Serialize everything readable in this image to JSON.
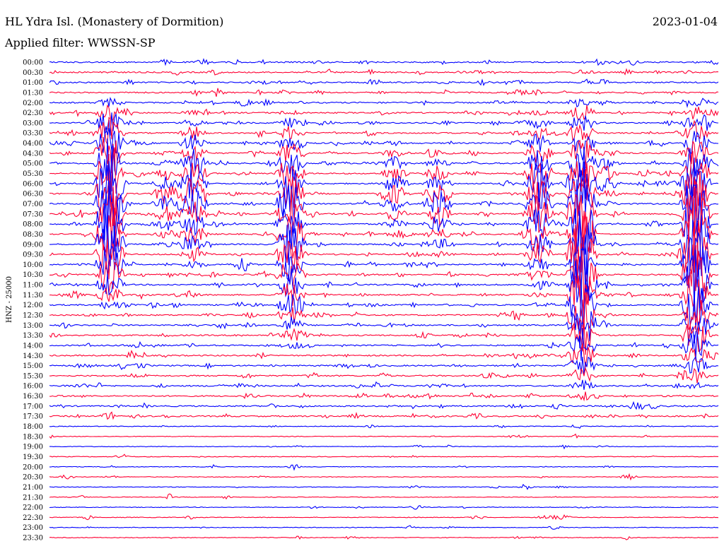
{
  "header": {
    "station": "HL Ydra Isl. (Monastery of Dormition)",
    "date": "2023-01-04",
    "filter": "Applied filter: WWSSN-SP"
  },
  "chart_data": {
    "type": "line",
    "title": "HL Ydra Isl. (Monastery of Dormition)",
    "subtitle": "Applied filter: WWSSN-SP",
    "date": "2023-01-04",
    "ylabel": "HNZ - 25000",
    "xlabel": "",
    "grid": false,
    "line_colors": [
      "#0000ff",
      "#ff0033"
    ],
    "rows": [
      "00:00",
      "00:30",
      "01:00",
      "01:30",
      "02:00",
      "02:30",
      "03:00",
      "03:30",
      "04:00",
      "04:30",
      "05:00",
      "05:30",
      "06:00",
      "06:30",
      "07:00",
      "07:30",
      "08:00",
      "08:30",
      "09:00",
      "09:30",
      "10:00",
      "10:30",
      "11:00",
      "11:30",
      "12:00",
      "12:30",
      "13:00",
      "13:30",
      "14:00",
      "14:30",
      "15:00",
      "15:30",
      "16:00",
      "16:30",
      "17:00",
      "17:30",
      "18:00",
      "18:30",
      "19:00",
      "19:30",
      "20:00",
      "20:30",
      "21:00",
      "21:30",
      "22:00",
      "22:30",
      "23:00",
      "23:30"
    ],
    "events": [
      {
        "x": 0.09,
        "rows": [
          4,
          24
        ],
        "peak": 5.0
      },
      {
        "x": 0.215,
        "rows": [
          5,
          21
        ],
        "peak": 2.0
      },
      {
        "x": 0.175,
        "rows": [
          9,
          18
        ],
        "peak": 1.2
      },
      {
        "x": 0.36,
        "rows": [
          5,
          28
        ],
        "peak": 3.0
      },
      {
        "x": 0.515,
        "rows": [
          8,
          17
        ],
        "peak": 1.2
      },
      {
        "x": 0.58,
        "rows": [
          9,
          19
        ],
        "peak": 1.4
      },
      {
        "x": 0.73,
        "rows": [
          5,
          23
        ],
        "peak": 2.5
      },
      {
        "x": 0.795,
        "rows": [
          4,
          33
        ],
        "peak": 5.0
      },
      {
        "x": 0.83,
        "rows": [
          9,
          14
        ],
        "peak": 1.0
      },
      {
        "x": 0.965,
        "rows": [
          4,
          32
        ],
        "peak": 5.0
      }
    ]
  }
}
